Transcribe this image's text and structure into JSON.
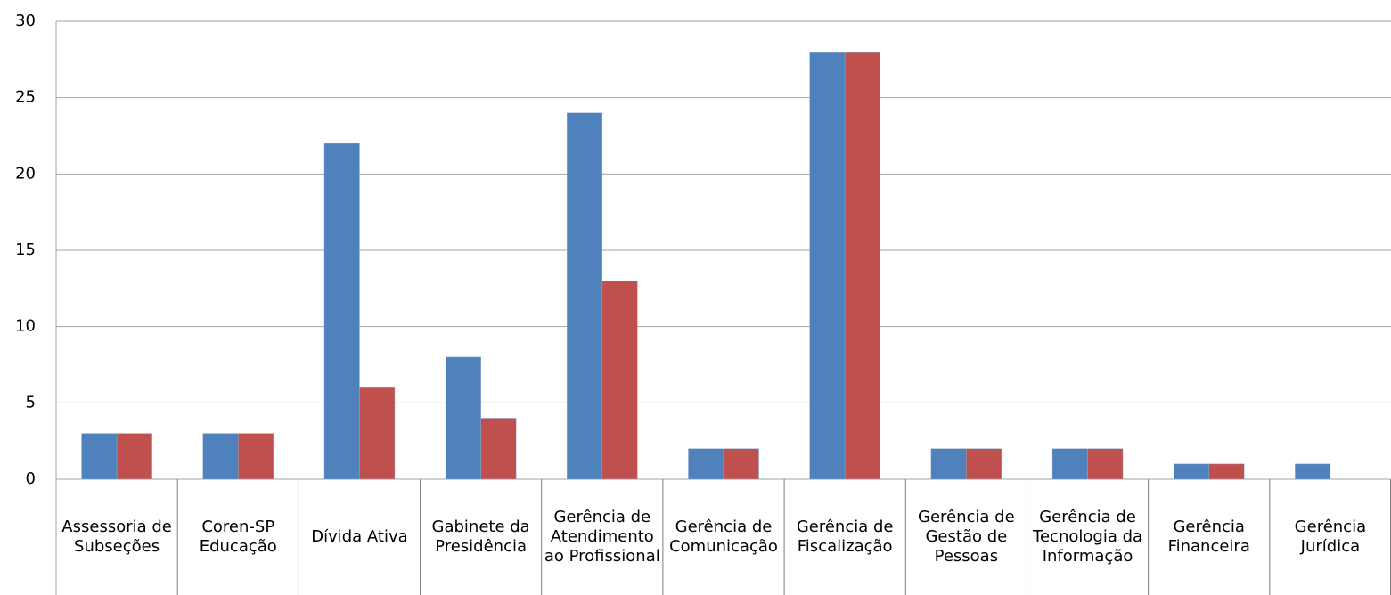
{
  "chart_data": {
    "type": "bar",
    "categories": [
      "Assessoria de Subseções",
      "Coren-SP Educação",
      "Dívida Ativa",
      "Gabinete da Presidência",
      "Gerência de Atendimento ao Profissional",
      "Gerência de Comunicação",
      "Gerência de Fiscalização",
      "Gerência de Gestão de Pessoas",
      "Gerência de Tecnologia da Informação",
      "Gerência Financeira",
      "Gerência Jurídica"
    ],
    "series": [
      {
        "color": "#4f81bd",
        "values": [
          3,
          3,
          22,
          8,
          24,
          2,
          28,
          2,
          2,
          1,
          1
        ]
      },
      {
        "color": "#c0504d",
        "values": [
          3,
          3,
          6,
          4,
          13,
          2,
          28,
          2,
          2,
          1,
          0
        ]
      }
    ],
    "ylim": [
      0,
      30
    ],
    "yticks": [
      0,
      5,
      10,
      15,
      20,
      25,
      30
    ],
    "grid": true
  }
}
